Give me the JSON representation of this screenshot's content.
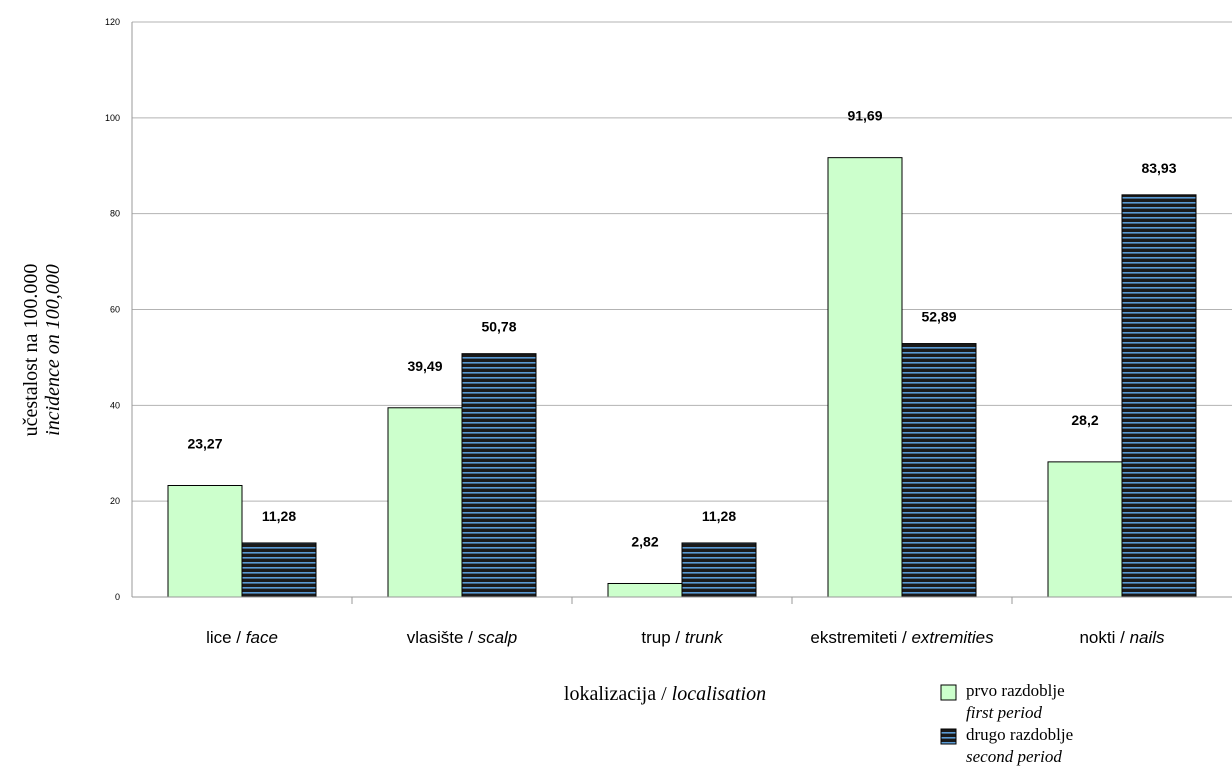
{
  "chart_data": {
    "type": "bar",
    "categories": [
      {
        "main": "lice / ",
        "italic": "face"
      },
      {
        "main": "vlasište / ",
        "italic": "scalp"
      },
      {
        "main": "trup / ",
        "italic": "trunk"
      },
      {
        "main": "ekstremiteti / ",
        "italic": "extremities"
      },
      {
        "main": "nokti / ",
        "italic": "nails"
      }
    ],
    "series": [
      {
        "name": "prvo razdoblje",
        "name_en": "first period",
        "values": [
          23.27,
          39.49,
          2.82,
          91.69,
          28.2
        ],
        "labels": [
          "23,27",
          "39,49",
          "2,82",
          "91,69",
          "28,2"
        ],
        "color": "#ccffcc"
      },
      {
        "name": "drugo razdoblje",
        "name_en": "second period",
        "values": [
          11.28,
          50.78,
          11.28,
          52.89,
          83.93
        ],
        "labels": [
          "11,28",
          "50,78",
          "11,28",
          "52,89",
          "83,93"
        ],
        "color": "#1a1a1a",
        "stripe_color": "#5b9bd5"
      }
    ],
    "ylim": [
      0,
      120
    ],
    "yticks": [
      0,
      20,
      40,
      60,
      80,
      100,
      120
    ],
    "xlabel": {
      "main": "lokalizacija / ",
      "italic": "localisation"
    },
    "ylabel": {
      "line1": "učestalost na 100.000",
      "line2": "incidence on 100,000"
    },
    "grid": true,
    "legend": "bottom-right"
  }
}
